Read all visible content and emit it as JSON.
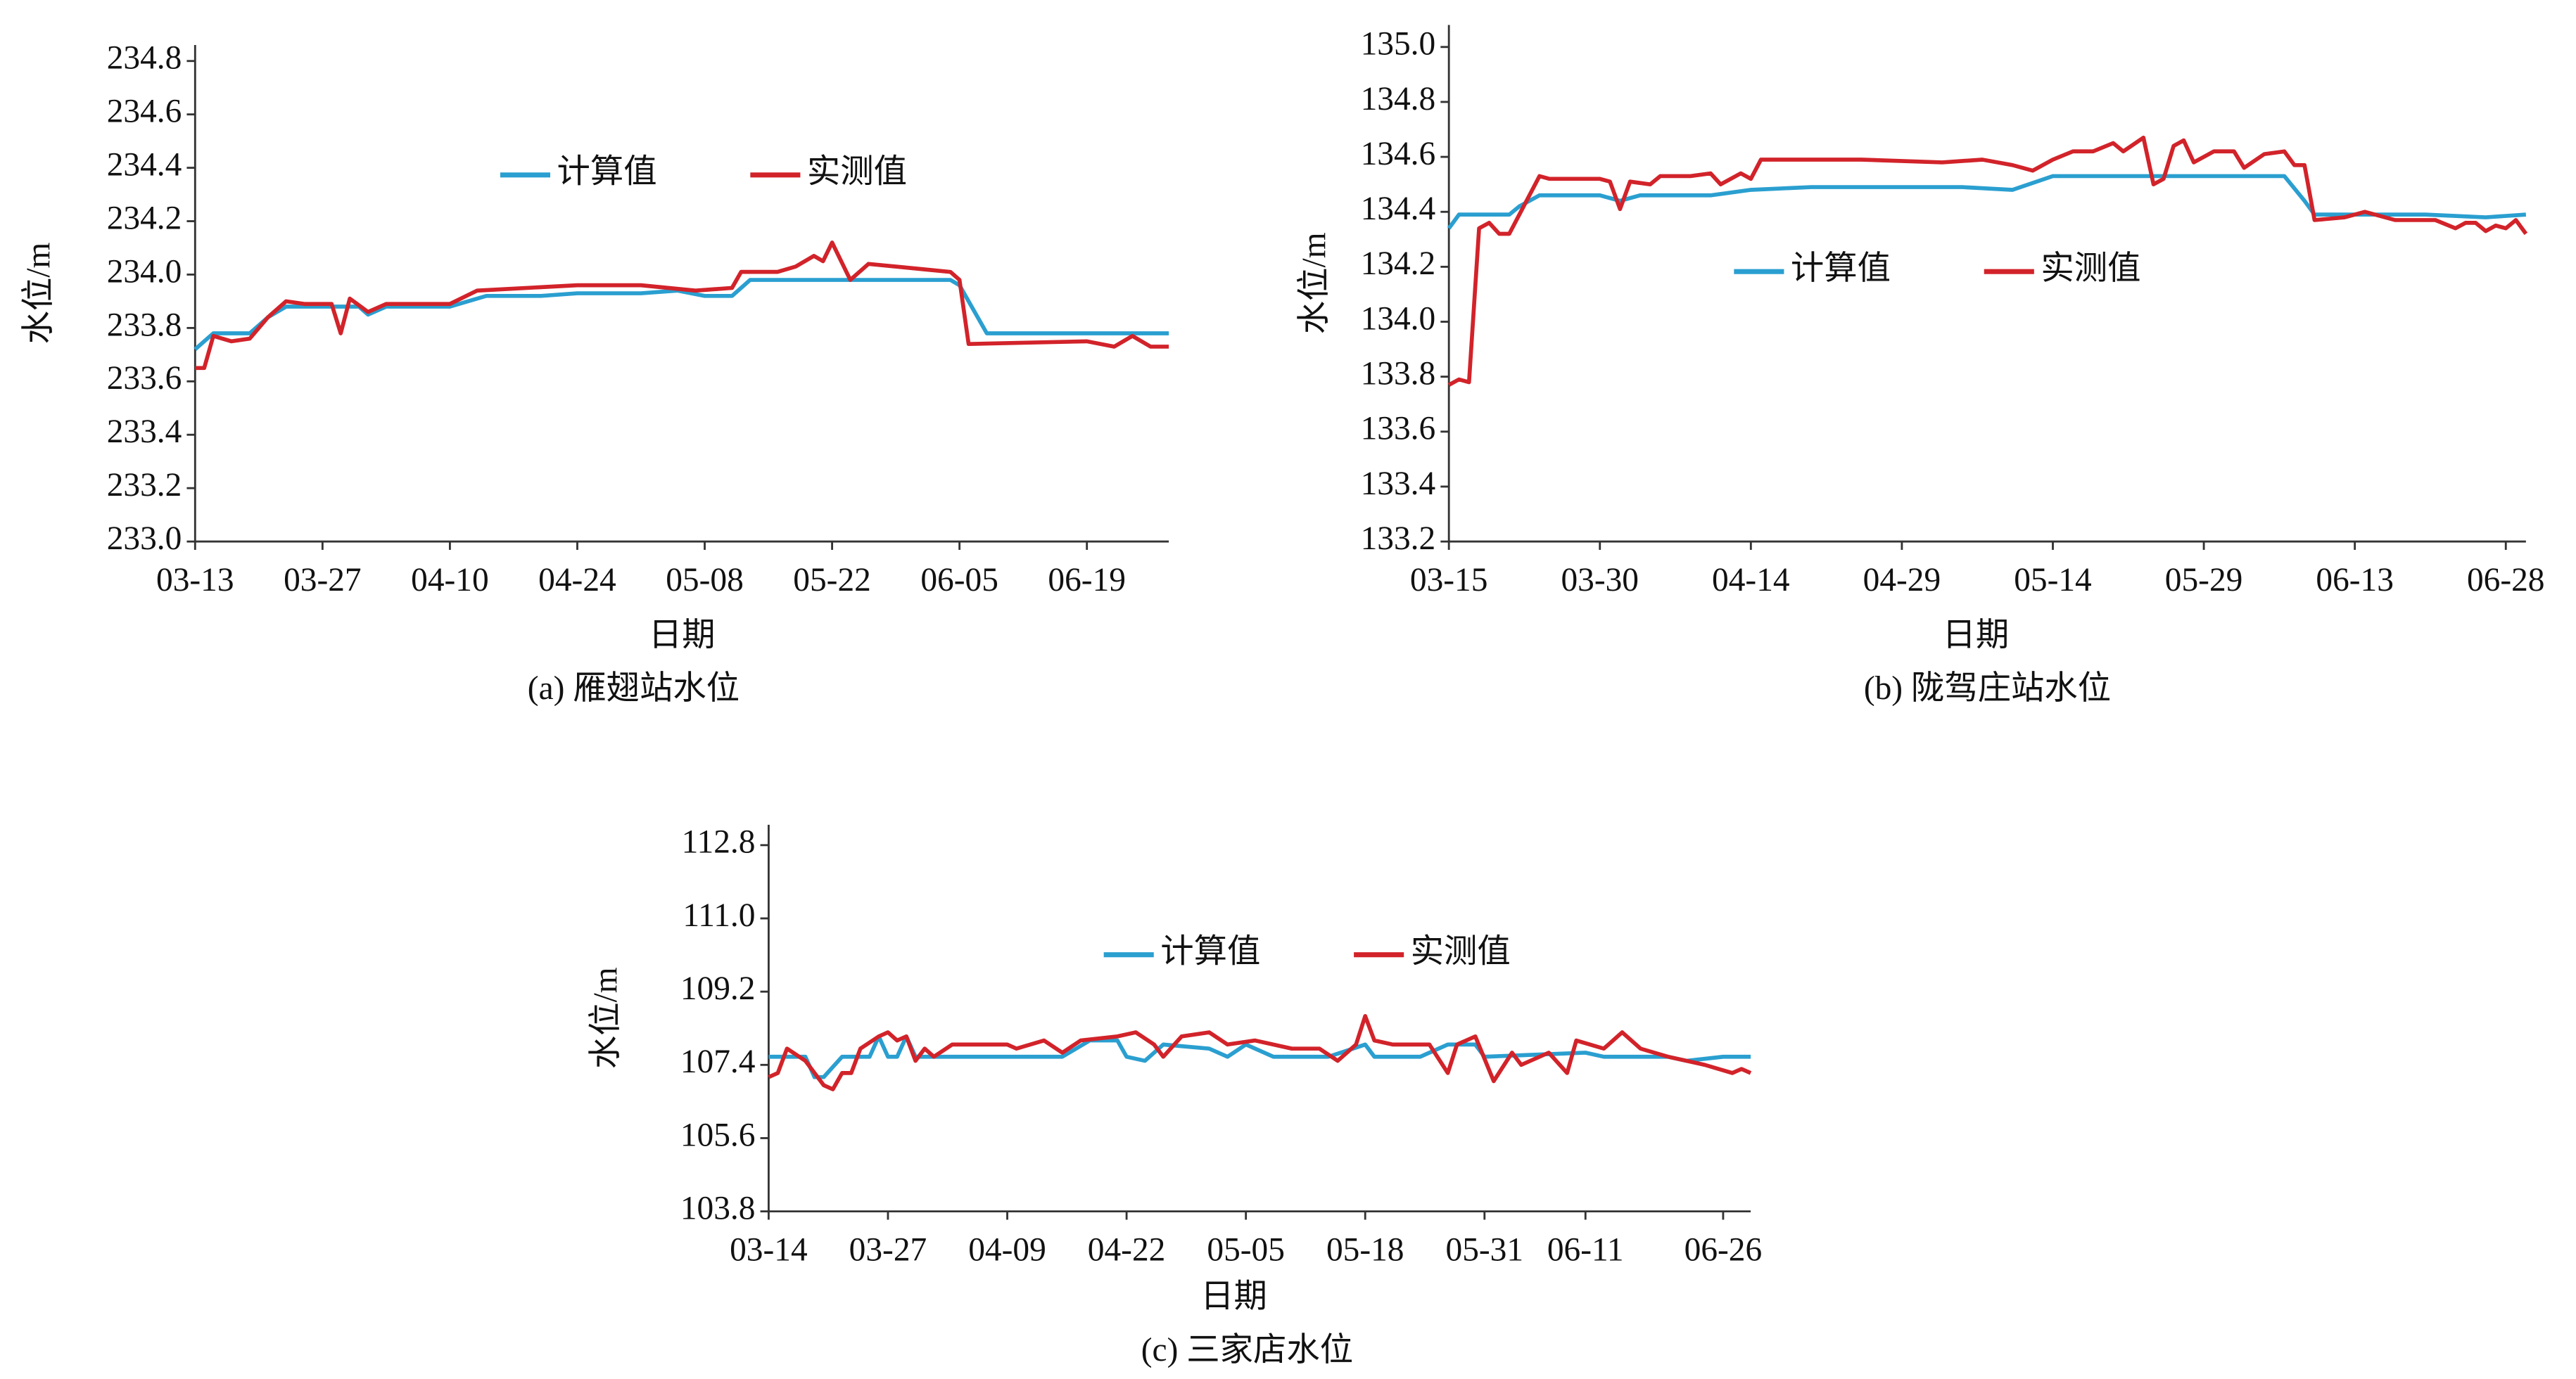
{
  "chart_data": [
    {
      "type": "line",
      "title": "(a) 雁翅站水位",
      "xlabel": "日期",
      "ylabel": "水位/m",
      "xlim": [
        "03-13",
        "06-28"
      ],
      "xticks": [
        "03-13",
        "03-27",
        "04-10",
        "04-24",
        "05-08",
        "05-22",
        "06-05",
        "06-19"
      ],
      "ylim": [
        233.0,
        234.86
      ],
      "yticks": [
        {
          "value": 233.0,
          "label": "233.0"
        },
        233.2,
        233.4,
        233.6,
        233.8,
        {
          "value": 234.0,
          "label": "234.0"
        },
        234.2,
        234.4,
        234.6,
        234.8
      ],
      "series": [
        {
          "name": "计算值",
          "color": "#2a9fd0",
          "x": [
            "03-13",
            "03-15",
            "03-19",
            "03-21",
            "03-23",
            "03-31",
            "04-01",
            "04-03",
            "04-10",
            "04-14",
            "04-20",
            "04-24",
            "05-01",
            "05-05",
            "05-08",
            "05-11",
            "05-13",
            "05-22",
            "06-04",
            "06-05",
            "06-06",
            "06-08",
            "06-28"
          ],
          "values": [
            233.72,
            233.78,
            233.78,
            233.84,
            233.88,
            233.88,
            233.85,
            233.88,
            233.88,
            233.92,
            233.92,
            233.93,
            233.93,
            233.94,
            233.92,
            233.92,
            233.98,
            233.98,
            233.98,
            233.96,
            233.9,
            233.78,
            233.78
          ]
        },
        {
          "name": "实测值",
          "color": "#d2232a",
          "x": [
            "03-13",
            "03-14",
            "03-15",
            "03-17",
            "03-19",
            "03-21",
            "03-23",
            "03-25",
            "03-28",
            "03-29",
            "03-30",
            "04-01",
            "04-03",
            "04-10",
            "04-13",
            "04-24",
            "05-01",
            "05-07",
            "05-11",
            "05-12",
            "05-16",
            "05-18",
            "05-20",
            "05-21",
            "05-22",
            "05-24",
            "05-26",
            "06-01",
            "06-04",
            "06-05",
            "06-06",
            "06-19",
            "06-22",
            "06-24",
            "06-26",
            "06-28"
          ],
          "values": [
            233.65,
            233.65,
            233.77,
            233.75,
            233.76,
            233.84,
            233.9,
            233.89,
            233.89,
            233.78,
            233.91,
            233.86,
            233.89,
            233.89,
            233.94,
            233.96,
            233.96,
            233.94,
            233.95,
            234.01,
            234.01,
            234.03,
            234.07,
            234.05,
            234.12,
            233.98,
            234.04,
            234.02,
            234.01,
            233.98,
            233.74,
            233.75,
            233.73,
            233.77,
            233.73,
            233.73
          ]
        }
      ]
    },
    {
      "type": "line",
      "title": "(b) 陇驾庄站水位",
      "xlabel": "日期",
      "ylabel": "水位/m",
      "xlim": [
        "03-15",
        "06-30"
      ],
      "xticks": [
        "03-15",
        "03-30",
        "04-14",
        "04-29",
        "05-14",
        "05-29",
        "06-13",
        "06-28"
      ],
      "ylim": [
        133.2,
        135.08
      ],
      "yticks": [
        133.2,
        133.4,
        133.6,
        133.8,
        {
          "value": 134.0,
          "label": "134.0"
        },
        134.2,
        134.4,
        134.6,
        134.8,
        {
          "value": 135.0,
          "label": "135.0"
        }
      ],
      "series": [
        {
          "name": "计算值",
          "color": "#2a9fd0",
          "x": [
            "03-15",
            "03-16",
            "03-21",
            "03-22",
            "03-24",
            "03-30",
            "04-01",
            "04-03",
            "04-10",
            "04-14",
            "04-20",
            "05-05",
            "05-10",
            "05-14",
            "06-06",
            "06-08",
            "06-09",
            "06-20",
            "06-26",
            "06-30"
          ],
          "values": [
            134.34,
            134.39,
            134.39,
            134.42,
            134.46,
            134.46,
            134.44,
            134.46,
            134.46,
            134.48,
            134.49,
            134.49,
            134.48,
            134.53,
            134.53,
            134.44,
            134.39,
            134.39,
            134.38,
            134.39
          ]
        },
        {
          "name": "实测值",
          "color": "#d2232a",
          "x": [
            "03-15",
            "03-16",
            "03-17",
            "03-18",
            "03-19",
            "03-20",
            "03-21",
            "03-24",
            "03-25",
            "03-30",
            "03-31",
            "04-01",
            "04-02",
            "04-04",
            "04-05",
            "04-08",
            "04-10",
            "04-11",
            "04-13",
            "04-14",
            "04-15",
            "04-20",
            "04-25",
            "05-03",
            "05-07",
            "05-10",
            "05-12",
            "05-14",
            "05-16",
            "05-18",
            "05-20",
            "05-21",
            "05-23",
            "05-24",
            "05-25",
            "05-26",
            "05-27",
            "05-28",
            "05-30",
            "06-01",
            "06-02",
            "06-04",
            "06-06",
            "06-07",
            "06-08",
            "06-09",
            "06-12",
            "06-14",
            "06-17",
            "06-21",
            "06-23",
            "06-24",
            "06-25",
            "06-26",
            "06-27",
            "06-28",
            "06-29",
            "06-30"
          ],
          "values": [
            133.77,
            133.79,
            133.78,
            134.34,
            134.36,
            134.32,
            134.32,
            134.53,
            134.52,
            134.52,
            134.51,
            134.41,
            134.51,
            134.5,
            134.53,
            134.53,
            134.54,
            134.5,
            134.54,
            134.52,
            134.59,
            134.59,
            134.59,
            134.58,
            134.59,
            134.57,
            134.55,
            134.59,
            134.62,
            134.62,
            134.65,
            134.62,
            134.67,
            134.5,
            134.52,
            134.64,
            134.66,
            134.58,
            134.62,
            134.62,
            134.56,
            134.61,
            134.62,
            134.57,
            134.57,
            134.37,
            134.38,
            134.4,
            134.37,
            134.37,
            134.34,
            134.36,
            134.36,
            134.33,
            134.35,
            134.34,
            134.37,
            134.32
          ]
        }
      ]
    },
    {
      "type": "line",
      "title": "(c) 三家店水位",
      "xlabel": "日期",
      "ylabel": "水位/m",
      "xlim": [
        "03-14",
        "06-29"
      ],
      "xticks": [
        "03-14",
        "03-27",
        "04-09",
        "04-22",
        "05-05",
        "05-18",
        "05-31",
        "06-11",
        "06-26"
      ],
      "ylim": [
        103.8,
        113.3
      ],
      "yticks": [
        103.8,
        105.6,
        107.4,
        109.2,
        {
          "value": 111.0,
          "label": "111.0"
        },
        112.8
      ],
      "series": [
        {
          "name": "计算值",
          "color": "#2a9fd0",
          "x": [
            "03-14",
            "03-18",
            "03-19",
            "03-20",
            "03-22",
            "03-25",
            "03-26",
            "03-27",
            "03-28",
            "03-29",
            "03-30",
            "04-03",
            "04-15",
            "04-18",
            "04-21",
            "04-22",
            "04-24",
            "04-26",
            "05-01",
            "05-03",
            "05-05",
            "05-08",
            "05-14",
            "05-18",
            "05-19",
            "05-24",
            "05-27",
            "05-30",
            "05-31",
            "06-11",
            "06-13",
            "06-20",
            "06-22",
            "06-26",
            "06-29"
          ],
          "values": [
            107.6,
            107.6,
            107.1,
            107.1,
            107.6,
            107.6,
            108.1,
            107.6,
            107.6,
            108.1,
            107.6,
            107.6,
            107.6,
            108.0,
            108.0,
            107.6,
            107.5,
            107.9,
            107.8,
            107.6,
            107.9,
            107.6,
            107.6,
            107.9,
            107.6,
            107.6,
            107.9,
            107.9,
            107.6,
            107.7,
            107.6,
            107.6,
            107.5,
            107.6,
            107.6
          ]
        },
        {
          "name": "实测值",
          "color": "#d2232a",
          "x": [
            "03-14",
            "03-15",
            "03-16",
            "03-18",
            "03-20",
            "03-21",
            "03-22",
            "03-23",
            "03-24",
            "03-26",
            "03-27",
            "03-28",
            "03-29",
            "03-30",
            "03-31",
            "04-01",
            "04-03",
            "04-07",
            "04-09",
            "04-10",
            "04-13",
            "04-15",
            "04-17",
            "04-21",
            "04-23",
            "04-25",
            "04-26",
            "04-28",
            "05-01",
            "05-03",
            "05-06",
            "05-10",
            "05-13",
            "05-15",
            "05-17",
            "05-18",
            "05-19",
            "05-21",
            "05-25",
            "05-27",
            "05-28",
            "05-30",
            "06-01",
            "06-03",
            "06-04",
            "06-07",
            "06-09",
            "06-10",
            "06-13",
            "06-15",
            "06-17",
            "06-20",
            "06-24",
            "06-27",
            "06-28",
            "06-29"
          ],
          "values": [
            107.1,
            107.2,
            107.8,
            107.5,
            106.9,
            106.8,
            107.2,
            107.2,
            107.8,
            108.1,
            108.2,
            108.0,
            108.1,
            107.5,
            107.8,
            107.6,
            107.9,
            107.9,
            107.9,
            107.8,
            108.0,
            107.7,
            108.0,
            108.1,
            108.2,
            107.9,
            107.6,
            108.1,
            108.2,
            107.9,
            108.0,
            107.8,
            107.8,
            107.5,
            107.9,
            108.6,
            108.0,
            107.9,
            107.9,
            107.2,
            107.9,
            108.1,
            107.0,
            107.7,
            107.4,
            107.7,
            107.2,
            108.0,
            107.8,
            108.2,
            107.8,
            107.6,
            107.4,
            107.2,
            107.3,
            107.2
          ]
        }
      ]
    }
  ]
}
